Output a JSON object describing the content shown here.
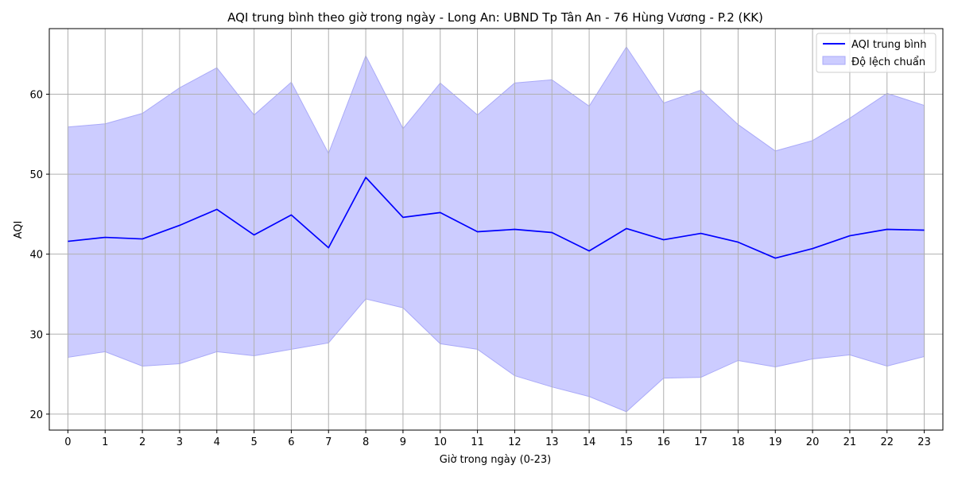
{
  "chart_data": {
    "type": "line",
    "title": "AQI trung bình theo giờ trong ngày - Long An: UBND Tp Tân An - 76 Hùng Vương - P.2 (KK)",
    "xlabel": "Giờ trong ngày (0-23)",
    "ylabel": "AQI",
    "x": [
      0,
      1,
      2,
      3,
      4,
      5,
      6,
      7,
      8,
      9,
      10,
      11,
      12,
      13,
      14,
      15,
      16,
      17,
      18,
      19,
      20,
      21,
      22,
      23
    ],
    "xlim": [
      -0.5,
      23.5
    ],
    "ylim": [
      18,
      68.2
    ],
    "yticks": [
      20,
      30,
      40,
      50,
      60
    ],
    "grid": true,
    "legend_position": "top-right",
    "series": [
      {
        "name": "AQI trung bình",
        "color": "#0000ff",
        "values": [
          41.6,
          42.1,
          41.9,
          43.6,
          45.6,
          42.4,
          44.9,
          40.8,
          49.6,
          44.6,
          45.2,
          42.8,
          43.1,
          42.7,
          40.4,
          43.2,
          41.8,
          42.6,
          41.5,
          39.5,
          40.7,
          42.3,
          43.1,
          43.0
        ]
      },
      {
        "name": "Độ lệch chuẩn",
        "type": "band",
        "color": "#ccccff",
        "upper": [
          55.9,
          56.3,
          57.6,
          60.8,
          63.3,
          57.4,
          61.5,
          52.6,
          64.8,
          55.7,
          61.4,
          57.4,
          61.4,
          61.8,
          58.5,
          65.9,
          58.9,
          60.5,
          56.2,
          52.9,
          54.2,
          57.0,
          60.1,
          58.6
        ],
        "lower": [
          27.1,
          27.8,
          26.0,
          26.3,
          27.8,
          27.3,
          28.1,
          28.9,
          34.4,
          33.3,
          28.8,
          28.1,
          24.8,
          23.4,
          22.2,
          20.3,
          24.5,
          24.6,
          26.7,
          25.9,
          26.9,
          27.4,
          26.0,
          27.2
        ]
      }
    ]
  }
}
